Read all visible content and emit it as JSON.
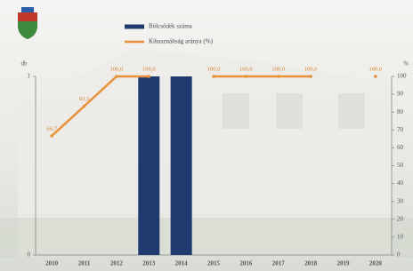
{
  "chart_data": {
    "type": "bar-line",
    "categories": [
      "2010",
      "2011",
      "2012",
      "2013",
      "2014",
      "2015",
      "2016",
      "2017",
      "2018",
      "2019",
      "2020"
    ],
    "ylabel": "db",
    "y2label": "%",
    "ylim": [
      0,
      1
    ],
    "yticks": [
      0,
      1
    ],
    "y2lim": [
      0,
      100
    ],
    "y2ticks": [
      0,
      10,
      20,
      30,
      40,
      50,
      60,
      70,
      80,
      90,
      100
    ],
    "series": [
      {
        "name": "Bölcsődék száma",
        "type": "bar",
        "color": "#1f3a6e",
        "values": [
          null,
          null,
          null,
          1,
          1,
          null,
          null,
          null,
          null,
          null,
          null
        ]
      },
      {
        "name": "Kihasználtság aránya (%)",
        "type": "line",
        "axis": "y2",
        "color": "#e8913a",
        "values": [
          66.7,
          83.3,
          100,
          100,
          null,
          100,
          100,
          100,
          100,
          null,
          100
        ],
        "value_labels": [
          "66,7",
          "83,3",
          "100,0",
          "100,0",
          null,
          "100,0",
          "100,0",
          "100,0",
          "100,0",
          null,
          "100,0"
        ]
      }
    ]
  }
}
